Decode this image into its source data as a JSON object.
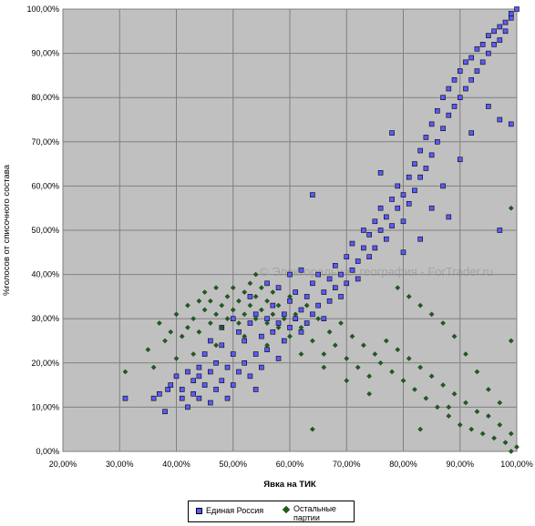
{
  "chart_data": {
    "type": "scatter",
    "title": "",
    "xlabel": "Явка на ТИК",
    "ylabel": "%голосов от списочного состава",
    "xlim": [
      0.2,
      1.0
    ],
    "ylim": [
      0.0,
      1.0
    ],
    "x_ticks": [
      "20,00%",
      "30,00%",
      "40,00%",
      "50,00%",
      "60,00%",
      "70,00%",
      "80,00%",
      "90,00%",
      "100,00%"
    ],
    "y_ticks": [
      "0,00%",
      "10,00%",
      "20,00%",
      "30,00%",
      "40,00%",
      "50,00%",
      "60,00%",
      "70,00%",
      "80,00%",
      "90,00%",
      "100,00%"
    ],
    "grid": true,
    "plot_background": "#c0c0c0",
    "legend_position": "bottom",
    "annotations": [
      "© Электоральная география - ForTrader.ru"
    ],
    "series": [
      {
        "name": "Единая Россия",
        "marker": "square",
        "color": "#5a5aff",
        "points": [
          [
            0.31,
            0.12
          ],
          [
            0.36,
            0.12
          ],
          [
            0.37,
            0.13
          ],
          [
            0.38,
            0.09
          ],
          [
            0.385,
            0.14
          ],
          [
            0.39,
            0.15
          ],
          [
            0.4,
            0.17
          ],
          [
            0.41,
            0.14
          ],
          [
            0.41,
            0.12
          ],
          [
            0.42,
            0.18
          ],
          [
            0.42,
            0.1
          ],
          [
            0.43,
            0.16
          ],
          [
            0.43,
            0.13
          ],
          [
            0.44,
            0.19
          ],
          [
            0.44,
            0.12
          ],
          [
            0.45,
            0.15
          ],
          [
            0.45,
            0.22
          ],
          [
            0.46,
            0.18
          ],
          [
            0.46,
            0.11
          ],
          [
            0.47,
            0.2
          ],
          [
            0.47,
            0.14
          ],
          [
            0.48,
            0.24
          ],
          [
            0.48,
            0.16
          ],
          [
            0.49,
            0.19
          ],
          [
            0.49,
            0.12
          ],
          [
            0.5,
            0.22
          ],
          [
            0.5,
            0.15
          ],
          [
            0.51,
            0.27
          ],
          [
            0.51,
            0.18
          ],
          [
            0.52,
            0.2
          ],
          [
            0.52,
            0.25
          ],
          [
            0.53,
            0.17
          ],
          [
            0.53,
            0.29
          ],
          [
            0.54,
            0.22
          ],
          [
            0.54,
            0.14
          ],
          [
            0.55,
            0.26
          ],
          [
            0.55,
            0.19
          ],
          [
            0.56,
            0.3
          ],
          [
            0.56,
            0.23
          ],
          [
            0.57,
            0.27
          ],
          [
            0.57,
            0.33
          ],
          [
            0.58,
            0.21
          ],
          [
            0.58,
            0.29
          ],
          [
            0.59,
            0.31
          ],
          [
            0.59,
            0.25
          ],
          [
            0.6,
            0.34
          ],
          [
            0.6,
            0.28
          ],
          [
            0.61,
            0.3
          ],
          [
            0.61,
            0.36
          ],
          [
            0.62,
            0.27
          ],
          [
            0.62,
            0.32
          ],
          [
            0.63,
            0.35
          ],
          [
            0.63,
            0.29
          ],
          [
            0.64,
            0.38
          ],
          [
            0.64,
            0.31
          ],
          [
            0.65,
            0.33
          ],
          [
            0.65,
            0.4
          ],
          [
            0.66,
            0.36
          ],
          [
            0.66,
            0.3
          ],
          [
            0.67,
            0.39
          ],
          [
            0.67,
            0.34
          ],
          [
            0.68,
            0.42
          ],
          [
            0.68,
            0.37
          ],
          [
            0.69,
            0.4
          ],
          [
            0.69,
            0.35
          ],
          [
            0.7,
            0.44
          ],
          [
            0.7,
            0.38
          ],
          [
            0.71,
            0.41
          ],
          [
            0.71,
            0.47
          ],
          [
            0.72,
            0.43
          ],
          [
            0.72,
            0.39
          ],
          [
            0.73,
            0.46
          ],
          [
            0.73,
            0.5
          ],
          [
            0.74,
            0.44
          ],
          [
            0.74,
            0.49
          ],
          [
            0.75,
            0.52
          ],
          [
            0.75,
            0.46
          ],
          [
            0.76,
            0.5
          ],
          [
            0.76,
            0.55
          ],
          [
            0.77,
            0.48
          ],
          [
            0.77,
            0.53
          ],
          [
            0.78,
            0.57
          ],
          [
            0.78,
            0.51
          ],
          [
            0.79,
            0.55
          ],
          [
            0.79,
            0.6
          ],
          [
            0.8,
            0.58
          ],
          [
            0.8,
            0.52
          ],
          [
            0.81,
            0.62
          ],
          [
            0.81,
            0.56
          ],
          [
            0.82,
            0.65
          ],
          [
            0.82,
            0.59
          ],
          [
            0.83,
            0.68
          ],
          [
            0.83,
            0.62
          ],
          [
            0.84,
            0.71
          ],
          [
            0.84,
            0.64
          ],
          [
            0.85,
            0.74
          ],
          [
            0.85,
            0.67
          ],
          [
            0.86,
            0.77
          ],
          [
            0.86,
            0.7
          ],
          [
            0.87,
            0.8
          ],
          [
            0.87,
            0.73
          ],
          [
            0.88,
            0.82
          ],
          [
            0.88,
            0.76
          ],
          [
            0.89,
            0.84
          ],
          [
            0.89,
            0.78
          ],
          [
            0.9,
            0.86
          ],
          [
            0.9,
            0.8
          ],
          [
            0.91,
            0.88
          ],
          [
            0.91,
            0.82
          ],
          [
            0.92,
            0.89
          ],
          [
            0.92,
            0.84
          ],
          [
            0.93,
            0.91
          ],
          [
            0.93,
            0.86
          ],
          [
            0.94,
            0.92
          ],
          [
            0.94,
            0.88
          ],
          [
            0.95,
            0.94
          ],
          [
            0.95,
            0.9
          ],
          [
            0.96,
            0.95
          ],
          [
            0.96,
            0.92
          ],
          [
            0.97,
            0.96
          ],
          [
            0.97,
            0.93
          ],
          [
            0.98,
            0.97
          ],
          [
            0.98,
            0.95
          ],
          [
            0.99,
            0.98
          ],
          [
            0.99,
            0.99
          ],
          [
            1.0,
            1.0
          ],
          [
            0.76,
            0.63
          ],
          [
            0.78,
            0.72
          ],
          [
            0.8,
            0.45
          ],
          [
            0.83,
            0.48
          ],
          [
            0.85,
            0.55
          ],
          [
            0.87,
            0.6
          ],
          [
            0.88,
            0.53
          ],
          [
            0.9,
            0.66
          ],
          [
            0.92,
            0.72
          ],
          [
            0.95,
            0.78
          ],
          [
            0.97,
            0.75
          ],
          [
            0.97,
            0.5
          ],
          [
            0.99,
            0.74
          ],
          [
            0.64,
            0.58
          ],
          [
            0.46,
            0.25
          ],
          [
            0.5,
            0.3
          ],
          [
            0.53,
            0.35
          ],
          [
            0.56,
            0.38
          ],
          [
            0.58,
            0.37
          ],
          [
            0.6,
            0.4
          ],
          [
            0.62,
            0.41
          ],
          [
            0.48,
            0.28
          ],
          [
            0.44,
            0.17
          ],
          [
            0.54,
            0.31
          ]
        ]
      },
      {
        "name": "Остальные партии",
        "marker": "diamond",
        "color": "#1f5c1f",
        "points": [
          [
            0.31,
            0.18
          ],
          [
            0.35,
            0.23
          ],
          [
            0.37,
            0.29
          ],
          [
            0.38,
            0.25
          ],
          [
            0.39,
            0.27
          ],
          [
            0.4,
            0.31
          ],
          [
            0.41,
            0.26
          ],
          [
            0.42,
            0.33
          ],
          [
            0.42,
            0.28
          ],
          [
            0.43,
            0.3
          ],
          [
            0.44,
            0.34
          ],
          [
            0.44,
            0.27
          ],
          [
            0.45,
            0.32
          ],
          [
            0.45,
            0.36
          ],
          [
            0.46,
            0.29
          ],
          [
            0.46,
            0.34
          ],
          [
            0.47,
            0.31
          ],
          [
            0.47,
            0.37
          ],
          [
            0.48,
            0.33
          ],
          [
            0.48,
            0.28
          ],
          [
            0.49,
            0.35
          ],
          [
            0.49,
            0.3
          ],
          [
            0.5,
            0.37
          ],
          [
            0.5,
            0.32
          ],
          [
            0.51,
            0.34
          ],
          [
            0.51,
            0.29
          ],
          [
            0.52,
            0.36
          ],
          [
            0.52,
            0.31
          ],
          [
            0.53,
            0.33
          ],
          [
            0.53,
            0.38
          ],
          [
            0.54,
            0.3
          ],
          [
            0.54,
            0.35
          ],
          [
            0.55,
            0.32
          ],
          [
            0.55,
            0.37
          ],
          [
            0.56,
            0.34
          ],
          [
            0.56,
            0.29
          ],
          [
            0.57,
            0.31
          ],
          [
            0.57,
            0.36
          ],
          [
            0.58,
            0.33
          ],
          [
            0.58,
            0.28
          ],
          [
            0.59,
            0.3
          ],
          [
            0.6,
            0.35
          ],
          [
            0.6,
            0.26
          ],
          [
            0.61,
            0.31
          ],
          [
            0.62,
            0.28
          ],
          [
            0.63,
            0.33
          ],
          [
            0.64,
            0.25
          ],
          [
            0.65,
            0.3
          ],
          [
            0.66,
            0.22
          ],
          [
            0.67,
            0.27
          ],
          [
            0.68,
            0.24
          ],
          [
            0.69,
            0.29
          ],
          [
            0.7,
            0.21
          ],
          [
            0.71,
            0.26
          ],
          [
            0.72,
            0.19
          ],
          [
            0.73,
            0.24
          ],
          [
            0.74,
            0.17
          ],
          [
            0.75,
            0.22
          ],
          [
            0.76,
            0.2
          ],
          [
            0.77,
            0.25
          ],
          [
            0.78,
            0.18
          ],
          [
            0.79,
            0.23
          ],
          [
            0.8,
            0.16
          ],
          [
            0.81,
            0.21
          ],
          [
            0.82,
            0.14
          ],
          [
            0.83,
            0.19
          ],
          [
            0.84,
            0.12
          ],
          [
            0.85,
            0.17
          ],
          [
            0.86,
            0.1
          ],
          [
            0.87,
            0.15
          ],
          [
            0.88,
            0.08
          ],
          [
            0.89,
            0.13
          ],
          [
            0.9,
            0.06
          ],
          [
            0.91,
            0.11
          ],
          [
            0.92,
            0.05
          ],
          [
            0.93,
            0.09
          ],
          [
            0.94,
            0.04
          ],
          [
            0.95,
            0.08
          ],
          [
            0.96,
            0.03
          ],
          [
            0.97,
            0.06
          ],
          [
            0.98,
            0.02
          ],
          [
            0.99,
            0.04
          ],
          [
            1.0,
            0.01
          ],
          [
            0.99,
            0.0
          ],
          [
            0.97,
            0.11
          ],
          [
            0.95,
            0.14
          ],
          [
            0.93,
            0.18
          ],
          [
            0.91,
            0.22
          ],
          [
            0.89,
            0.26
          ],
          [
            0.87,
            0.29
          ],
          [
            0.85,
            0.31
          ],
          [
            0.83,
            0.33
          ],
          [
            0.81,
            0.35
          ],
          [
            0.79,
            0.37
          ],
          [
            0.64,
            0.05
          ],
          [
            0.83,
            0.05
          ],
          [
            0.88,
            0.1
          ],
          [
            0.99,
            0.25
          ],
          [
            0.99,
            0.55
          ],
          [
            0.54,
            0.4
          ],
          [
            0.43,
            0.22
          ],
          [
            0.4,
            0.21
          ],
          [
            0.36,
            0.19
          ],
          [
            0.47,
            0.24
          ],
          [
            0.52,
            0.26
          ],
          [
            0.56,
            0.24
          ],
          [
            0.62,
            0.22
          ],
          [
            0.66,
            0.19
          ],
          [
            0.7,
            0.16
          ],
          [
            0.74,
            0.13
          ]
        ]
      }
    ]
  }
}
